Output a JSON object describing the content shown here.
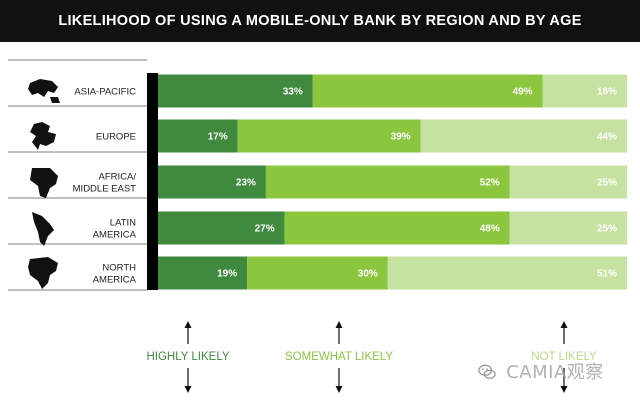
{
  "title": "LIKELIHOOD OF USING A MOBILE-ONLY BANK BY REGION AND BY AGE",
  "colors": {
    "highly_likely": "#3f8a3f",
    "somewhat_likely": "#8cc63f",
    "not_likely": "#c6e2a0",
    "axis": "#000000",
    "separator": "#555555"
  },
  "chart_data": {
    "type": "bar",
    "orientation": "horizontal",
    "stacked": true,
    "categories": [
      {
        "lines": [
          "ASIA-PACIFIC"
        ],
        "icon": "asia-pacific-map-icon"
      },
      {
        "lines": [
          "EUROPE"
        ],
        "icon": "europe-map-icon"
      },
      {
        "lines": [
          "AFRICA/",
          "MIDDLE EAST"
        ],
        "icon": "africa-map-icon"
      },
      {
        "lines": [
          "LATIN",
          "AMERICA"
        ],
        "icon": "latin-america-map-icon"
      },
      {
        "lines": [
          "NORTH",
          "AMERICA"
        ],
        "icon": "north-america-map-icon"
      }
    ],
    "series": [
      {
        "name": "HIGHLY LIKELY",
        "color": "#3f8a3f",
        "values": [
          33,
          17,
          23,
          27,
          19
        ]
      },
      {
        "name": "SOMEWHAT LIKELY",
        "color": "#8cc63f",
        "values": [
          49,
          39,
          52,
          48,
          30
        ]
      },
      {
        "name": "NOT LIKELY",
        "color": "#c6e2a0",
        "values": [
          18,
          44,
          25,
          25,
          51
        ]
      }
    ],
    "value_suffix": "%",
    "xlim": [
      0,
      100
    ],
    "legend_position": "bottom"
  },
  "watermark": {
    "text": "CAMIA观察",
    "icon": "wechat-icon"
  }
}
